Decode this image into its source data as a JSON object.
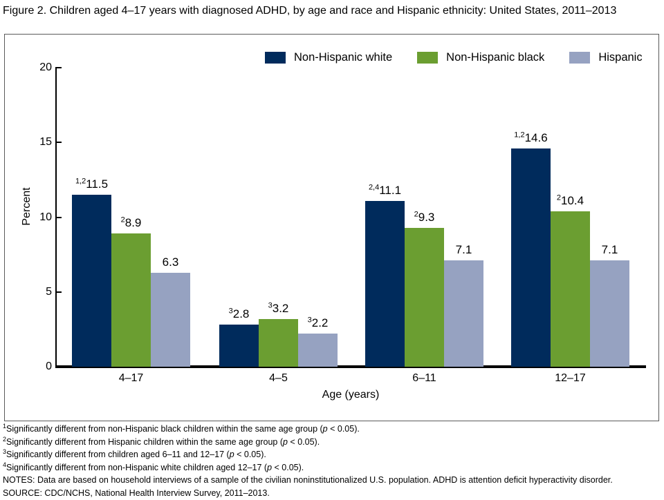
{
  "title": "Figure 2. Children aged 4–17 years with diagnosed ADHD, by age and race and Hispanic ethnicity: United States, 2011–2013",
  "chart_data": {
    "type": "bar",
    "title": "Children aged 4–17 years with diagnosed ADHD, by age and race and Hispanic ethnicity: United States, 2011–2013",
    "categories": [
      "4–17",
      "4–5",
      "6–11",
      "12–17"
    ],
    "series": [
      {
        "name": "Non-Hispanic white",
        "color": "#002b5c",
        "values": [
          11.5,
          2.8,
          11.1,
          14.6
        ],
        "sups": [
          "1,2",
          "3",
          "2,4",
          "1,2"
        ]
      },
      {
        "name": "Non-Hispanic black",
        "color": "#6b9e31",
        "values": [
          8.9,
          3.2,
          9.3,
          10.4
        ],
        "sups": [
          "2",
          "3",
          "2",
          "2"
        ]
      },
      {
        "name": "Hispanic",
        "color": "#96a2c1",
        "values": [
          6.3,
          2.2,
          7.1,
          7.1
        ],
        "sups": [
          "",
          "3",
          "",
          ""
        ]
      }
    ],
    "ylabel": "Percent",
    "xlabel": "Age (years)",
    "ylim": [
      0,
      20
    ],
    "yticks": [
      0,
      5,
      10,
      15,
      20
    ],
    "grid": false,
    "legend_position": "top-center"
  },
  "footnotes": [
    {
      "sup": "1",
      "before_p": "Significantly different from non-Hispanic black children within the same age group (",
      "p": "p",
      "after_p": " < 0.05)."
    },
    {
      "sup": "2",
      "before_p": "Significantly different from Hispanic children within the same age group (",
      "p": "p",
      "after_p": " < 0.05)."
    },
    {
      "sup": "3",
      "before_p": "Significantly different from children aged 6–11 and 12–17 (",
      "p": "p",
      "after_p": " < 0.05)."
    },
    {
      "sup": "4",
      "before_p": "Significantly different from non-Hispanic white children aged 12–17 (",
      "p": "p",
      "after_p": " < 0.05)."
    }
  ],
  "notes": "NOTES: Data are based on household interviews of a sample of the civilian noninstitutionalized U.S. population. ADHD is attention deficit hyperactivity disorder.",
  "source": "SOURCE: CDC/NCHS, National Health Interview Survey, 2011–2013."
}
